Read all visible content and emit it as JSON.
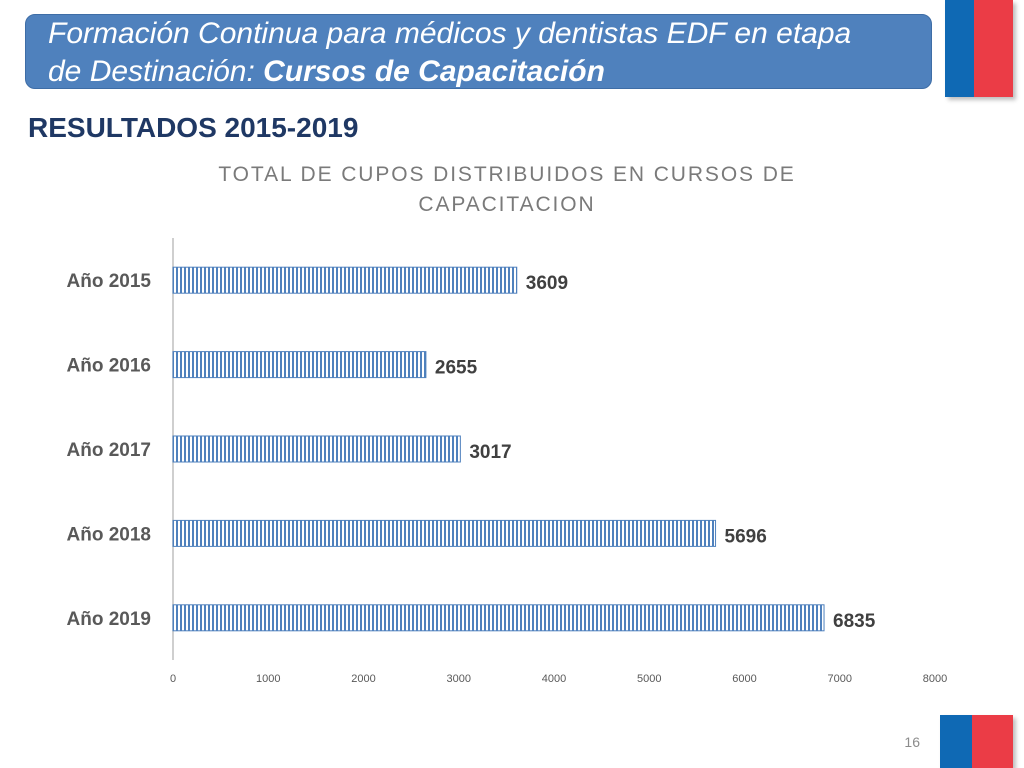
{
  "header": {
    "title_line1": "Formación Continua para médicos y dentistas EDF en etapa",
    "title_line2_regular": "de Destinación: ",
    "title_line2_bold": "Cursos de Capacitación"
  },
  "section_title": "RESULTADOS 2015-2019",
  "chart_data": {
    "type": "bar",
    "horizontal": true,
    "title": "TOTAL DE CUPOS DISTRIBUIDOS EN CURSOS DE CAPACITACION",
    "categories": [
      "Año 2015",
      "Año 2016",
      "Año 2017",
      "Año 2018",
      "Año 2019"
    ],
    "values": [
      3609,
      2655,
      3017,
      5696,
      6835
    ],
    "xlim": [
      0,
      8000
    ],
    "xticks": [
      0,
      1000,
      2000,
      3000,
      4000,
      5000,
      6000,
      7000,
      8000
    ],
    "xlabel": "",
    "ylabel": "",
    "grid": false,
    "data_labels": true
  },
  "footer": {
    "page_number": "16"
  },
  "colors": {
    "banner": "#4f81bd",
    "section_title": "#1f3864",
    "bar": "#4f81bd",
    "flag_blue": "#0f69b4",
    "flag_red": "#eb3c46"
  }
}
